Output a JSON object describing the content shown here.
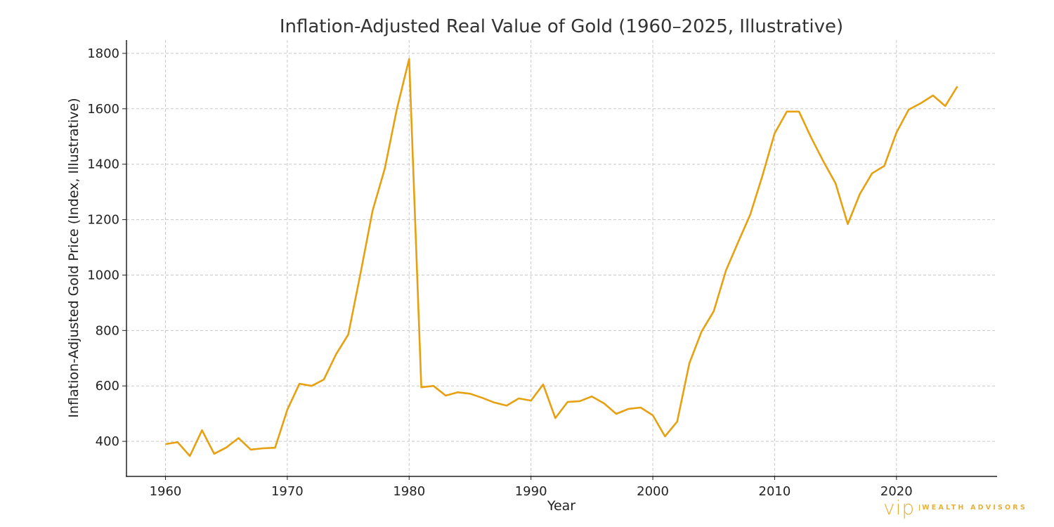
{
  "chart_data": {
    "type": "line",
    "title": "Inflation-Adjusted Real Value of Gold (1960–2025, Illustrative)",
    "xlabel": "Year",
    "ylabel": "Inflation-Adjusted Gold Price (Index, Illustrative)",
    "xlim": [
      1956.8,
      2028.2
    ],
    "ylim": [
      276,
      1848
    ],
    "xticks": [
      1960,
      1970,
      1980,
      1990,
      2000,
      2010,
      2020
    ],
    "yticks": [
      400,
      600,
      800,
      1000,
      1200,
      1400,
      1600,
      1800
    ],
    "grid": true,
    "line_color": "#e6a010",
    "x": [
      1960,
      1961,
      1962,
      1963,
      1964,
      1965,
      1966,
      1967,
      1968,
      1969,
      1970,
      1971,
      1972,
      1973,
      1974,
      1975,
      1976,
      1977,
      1978,
      1979,
      1980,
      1981,
      1982,
      1983,
      1984,
      1985,
      1986,
      1987,
      1988,
      1989,
      1990,
      1991,
      1992,
      1993,
      1994,
      1995,
      1996,
      1997,
      1998,
      1999,
      2000,
      2001,
      2002,
      2003,
      2004,
      2005,
      2006,
      2007,
      2008,
      2009,
      2010,
      2011,
      2012,
      2013,
      2014,
      2015,
      2016,
      2017,
      2018,
      2019,
      2020,
      2021,
      2022,
      2023,
      2024,
      2025
    ],
    "y": [
      390,
      397,
      347,
      440,
      355,
      378,
      412,
      370,
      375,
      377,
      514,
      608,
      600,
      623,
      714,
      785,
      1004,
      1232,
      1384,
      1600,
      1780,
      595,
      600,
      565,
      577,
      572,
      557,
      540,
      529,
      555,
      547,
      605,
      484,
      542,
      545,
      562,
      537,
      499,
      517,
      522,
      494,
      418,
      471,
      682,
      796,
      869,
      1016,
      1118,
      1219,
      1359,
      1511,
      1590,
      1590,
      1496,
      1410,
      1331,
      1184,
      1293,
      1367,
      1394,
      1514,
      1597,
      1620,
      1648,
      1610,
      1681
    ]
  },
  "logo": {
    "mark": "vip",
    "text": "WEALTH ADVISORS",
    "color": "#e8b037"
  }
}
